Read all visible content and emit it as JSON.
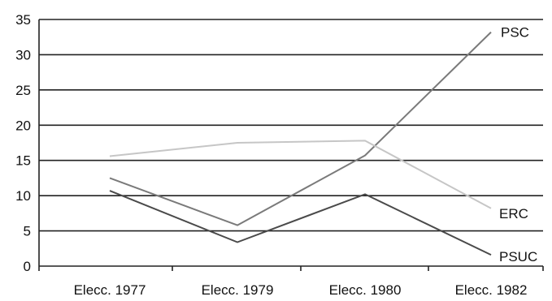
{
  "chart_data": {
    "type": "line",
    "title": "",
    "xlabel": "",
    "ylabel": "",
    "categories": [
      "Elecc. 1977",
      "Elecc. 1979",
      "Elecc. 1980",
      "Elecc. 1982"
    ],
    "ylim": [
      0,
      35
    ],
    "yticks": [
      "0",
      "5",
      "10",
      "15",
      "20",
      "25",
      "30",
      "35"
    ],
    "grid": true,
    "legend": "end-of-line labels",
    "series": [
      {
        "name": "PSC",
        "values": [
          12.5,
          5.8,
          15.7,
          33.2
        ],
        "color": "#7a7a7a"
      },
      {
        "name": "ERC",
        "values": [
          15.6,
          17.5,
          17.8,
          8.2
        ],
        "color": "#c6c6c6"
      },
      {
        "name": "PSUC",
        "values": [
          10.7,
          3.4,
          10.2,
          1.6
        ],
        "color": "#4a4a4a"
      }
    ]
  }
}
